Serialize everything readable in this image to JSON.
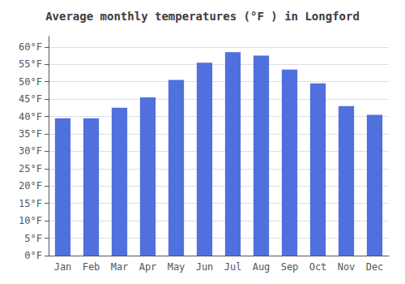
{
  "chart_data": {
    "type": "bar",
    "title": "Average monthly temperatures (°F ) in Longford",
    "categories": [
      "Jan",
      "Feb",
      "Mar",
      "Apr",
      "May",
      "Jun",
      "Jul",
      "Aug",
      "Sep",
      "Oct",
      "Nov",
      "Dec"
    ],
    "values": [
      39.5,
      39.5,
      42.5,
      45.5,
      50.5,
      55.5,
      58.5,
      57.5,
      53.5,
      49.5,
      43.0,
      40.5
    ],
    "ylim": [
      0,
      63
    ],
    "yticks": [
      {
        "value": 0,
        "label": "0°F"
      },
      {
        "value": 5,
        "label": "5°F"
      },
      {
        "value": 10,
        "label": "10°F"
      },
      {
        "value": 15,
        "label": "15°F"
      },
      {
        "value": 20,
        "label": "20°F"
      },
      {
        "value": 25,
        "label": "25°F"
      },
      {
        "value": 30,
        "label": "30°F"
      },
      {
        "value": 35,
        "label": "35°F"
      },
      {
        "value": 40,
        "label": "40°F"
      },
      {
        "value": 45,
        "label": "45°F"
      },
      {
        "value": 50,
        "label": "50°F"
      },
      {
        "value": 55,
        "label": "55°F"
      },
      {
        "value": 60,
        "label": "60°F"
      }
    ],
    "grid": true
  }
}
